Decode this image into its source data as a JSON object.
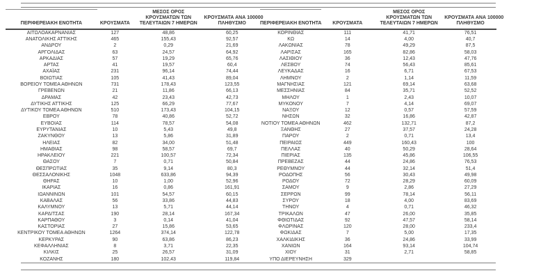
{
  "colors": {
    "text": "#383838",
    "rule": "#7f7f7f",
    "header_underline": "#4a4a4a",
    "background": "#ffffff"
  },
  "headers": {
    "col1": "ΠΕΡΙΦΕΡΕΙΑΚΗ ΕΝΟΤΗΤΑ",
    "col2": "ΚΡΟΥΣΜΑΤΑ",
    "col3_line1": "ΜΕΣΟΣ ΟΡΟΣ",
    "col3_line2": "ΚΡΟΥΣΜΑΤΩΝ ΤΩΝ",
    "col3_line3": "ΤΕΛΕΥΤΑΙΩΝ 7 ΗΜΕΡΩΝ",
    "col4_line1": "ΚΡΟΥΣΜΑΤΑ ΑΝΑ 100000",
    "col4_line2": "ΠΛΗΘΥΣΜΟ"
  },
  "left_rows": [
    [
      "ΑΙΤΩΛΟΑΚΑΡΝΑΝΙΑΣ",
      "127",
      "48,86",
      "60,25"
    ],
    [
      "ΑΝΑΤΟΛΙΚΗΣ ΑΤΤΙΚΗΣ",
      "465",
      "155,43",
      "92,57"
    ],
    [
      "ΑΝΔΡΟΥ",
      "2",
      "0,29",
      "21,69"
    ],
    [
      "ΑΡΓΟΛΙΔΑΣ",
      "63",
      "24,57",
      "64,92"
    ],
    [
      "ΑΡΚΑΔΙΑΣ",
      "57",
      "19,29",
      "65,76"
    ],
    [
      "ΑΡΤΑΣ",
      "41",
      "19,57",
      "60,4"
    ],
    [
      "ΑΧΑΪΑΣ",
      "231",
      "96,14",
      "74,44"
    ],
    [
      "ΒΟΙΩΤΙΑΣ",
      "105",
      "41,43",
      "89,04"
    ],
    [
      "ΒΟΡΕΙΟΥ ΤΟΜΕΑ ΑΘΗΝΩΝ",
      "731",
      "178,43",
      "123,55"
    ],
    [
      "ΓΡΕΒΕΝΩΝ",
      "21",
      "11,86",
      "66,13"
    ],
    [
      "ΔΡΑΜΑΣ",
      "42",
      "23,43",
      "42,73"
    ],
    [
      "ΔΥΤΙΚΗΣ ΑΤΤΙΚΗΣ",
      "125",
      "66,29",
      "77,67"
    ],
    [
      "ΔΥΤΙΚΟΥ ΤΟΜΕΑ ΑΘΗΝΩΝ",
      "510",
      "173,43",
      "104,15"
    ],
    [
      "ΕΒΡΟΥ",
      "78",
      "40,86",
      "52,72"
    ],
    [
      "ΕΥΒΟΙΑΣ",
      "114",
      "78,57",
      "54,08"
    ],
    [
      "ΕΥΡΥΤΑΝΙΑΣ",
      "10",
      "5,43",
      "49,8"
    ],
    [
      "ΖΑΚΥΝΘΟΥ",
      "13",
      "5,86",
      "31,89"
    ],
    [
      "ΗΛΕΙΑΣ",
      "82",
      "34,00",
      "51,48"
    ],
    [
      "ΗΜΑΘΙΑΣ",
      "98",
      "58,57",
      "69,7"
    ],
    [
      "ΗΡΑΚΛΕΙΟΥ",
      "221",
      "100,57",
      "72,34"
    ],
    [
      "ΘΑΣΟΥ",
      "7",
      "0,71",
      "50,84"
    ],
    [
      "ΘΕΣΠΡΩΤΙΑΣ",
      "35",
      "9,14",
      "80,3"
    ],
    [
      "ΘΕΣΣΑΛΟΝΙΚΗΣ",
      "1048",
      "633,86",
      "94,39"
    ],
    [
      "ΘΗΡΑΣ",
      "10",
      "1,00",
      "52,96"
    ],
    [
      "ΙΚΑΡΙΑΣ",
      "16",
      "0,86",
      "161,91"
    ],
    [
      "ΙΩΑΝΝΙΝΩΝ",
      "101",
      "54,57",
      "60,15"
    ],
    [
      "ΚΑΒΑΛΑΣ",
      "56",
      "33,86",
      "44,83"
    ],
    [
      "ΚΑΛΥΜΝΟΥ",
      "13",
      "5,71",
      "44,14"
    ],
    [
      "ΚΑΡΔΙΤΣΑΣ",
      "190",
      "28,14",
      "167,34"
    ],
    [
      "ΚΑΡΠΑΘΟΥ",
      "3",
      "0,14",
      "41,04"
    ],
    [
      "ΚΑΣΤΟΡΙΑΣ",
      "27",
      "15,86",
      "53,65"
    ],
    [
      "ΚΕΝΤΡΙΚΟΥ ΤΟΜΕΑ ΑΘΗΝΩΝ",
      "1264",
      "374,14",
      "122,78"
    ],
    [
      "ΚΕΡΚΥΡΑΣ",
      "90",
      "63,86",
      "86,23"
    ],
    [
      "ΚΕΦΑΛΛΗΝΙΑΣ",
      "8",
      "3,71",
      "22,35"
    ],
    [
      "ΚΙΛΚΙΣ",
      "25",
      "26,57",
      "31,09"
    ],
    [
      "ΚΟΖΑΝΗΣ",
      "180",
      "102,43",
      "119,84"
    ]
  ],
  "right_rows": [
    [
      "ΚΟΡΙΝΘΙΑΣ",
      "111",
      "41,71",
      "76,51"
    ],
    [
      "ΚΩ",
      "14",
      "4,00",
      "40,7"
    ],
    [
      "ΛΑΚΩΝΙΑΣ",
      "78",
      "49,29",
      "87,5"
    ],
    [
      "ΛΑΡΙΣΑΣ",
      "165",
      "82,86",
      "58,03"
    ],
    [
      "ΛΑΣΙΘΙΟΥ",
      "36",
      "12,43",
      "47,76"
    ],
    [
      "ΛΕΣΒΟΥ",
      "74",
      "56,43",
      "85,61"
    ],
    [
      "ΛΕΥΚΑΔΑΣ",
      "16",
      "6,71",
      "67,53"
    ],
    [
      "ΛΗΜΝΟΥ",
      "2",
      "1,14",
      "11,59"
    ],
    [
      "ΜΑΓΝΗΣΙΑΣ",
      "121",
      "69,14",
      "63,68"
    ],
    [
      "ΜΕΣΣΗΝΙΑΣ",
      "84",
      "35,71",
      "52,52"
    ],
    [
      "ΜΗΛΟΥ",
      "1",
      "2,43",
      "10,07"
    ],
    [
      "ΜΥΚΟΝΟΥ",
      "7",
      "4,14",
      "69,07"
    ],
    [
      "ΝΑΞΟΥ",
      "12",
      "0,57",
      "57,59"
    ],
    [
      "ΝΗΣΩΝ",
      "32",
      "16,86",
      "42,87"
    ],
    [
      "ΝΟΤΙΟΥ ΤΟΜΕΑ ΑΘΗΝΩΝ",
      "462",
      "132,71",
      "87,2"
    ],
    [
      "ΞΑΝΘΗΣ",
      "27",
      "37,57",
      "24,28"
    ],
    [
      "ΠΑΡΟΥ",
      "2",
      "0,71",
      "13,4"
    ],
    [
      "ΠΕΙΡΑΙΩΣ",
      "449",
      "160,43",
      "100"
    ],
    [
      "ΠΕΛΛΑΣ",
      "40",
      "50,29",
      "28,64"
    ],
    [
      "ΠΙΕΡΙΑΣ",
      "135",
      "45,86",
      "106,55"
    ],
    [
      "ΠΡΕΒΕΖΑΣ",
      "44",
      "24,86",
      "76,53"
    ],
    [
      "ΡΕΘΥΜΝΟΥ",
      "44",
      "32,14",
      "51,4"
    ],
    [
      "ΡΟΔΟΠΗΣ",
      "56",
      "30,43",
      "49,98"
    ],
    [
      "ΡΟΔΟΥ",
      "72",
      "28,29",
      "60,09"
    ],
    [
      "ΣΑΜΟΥ",
      "9",
      "2,86",
      "27,29"
    ],
    [
      "ΣΕΡΡΩΝ",
      "99",
      "78,14",
      "56,11"
    ],
    [
      "ΣΥΡΟΥ",
      "18",
      "4,00",
      "83,69"
    ],
    [
      "ΤΗΝΟΥ",
      "4",
      "0,71",
      "46,32"
    ],
    [
      "ΤΡΙΚΑΛΩΝ",
      "47",
      "26,00",
      "35,85"
    ],
    [
      "ΦΘΙΩΤΙΔΑΣ",
      "92",
      "47,57",
      "58,14"
    ],
    [
      "ΦΛΩΡΙΝΑΣ",
      "120",
      "28,00",
      "233,4"
    ],
    [
      "ΦΩΚΙΔΑΣ",
      "7",
      "5,00",
      "17,35"
    ],
    [
      "ΧΑΛΚΙΔΙΚΗΣ",
      "36",
      "24,86",
      "33,99"
    ],
    [
      "ΧΑΝΙΩΝ",
      "164",
      "93,14",
      "104,74"
    ],
    [
      "ΧΙΟΥ",
      "31",
      "2,71",
      "58,85"
    ],
    [
      "ΥΠΟ ΔΙΕΡΕΥΝΗΣΗ",
      "329",
      "",
      ""
    ]
  ]
}
